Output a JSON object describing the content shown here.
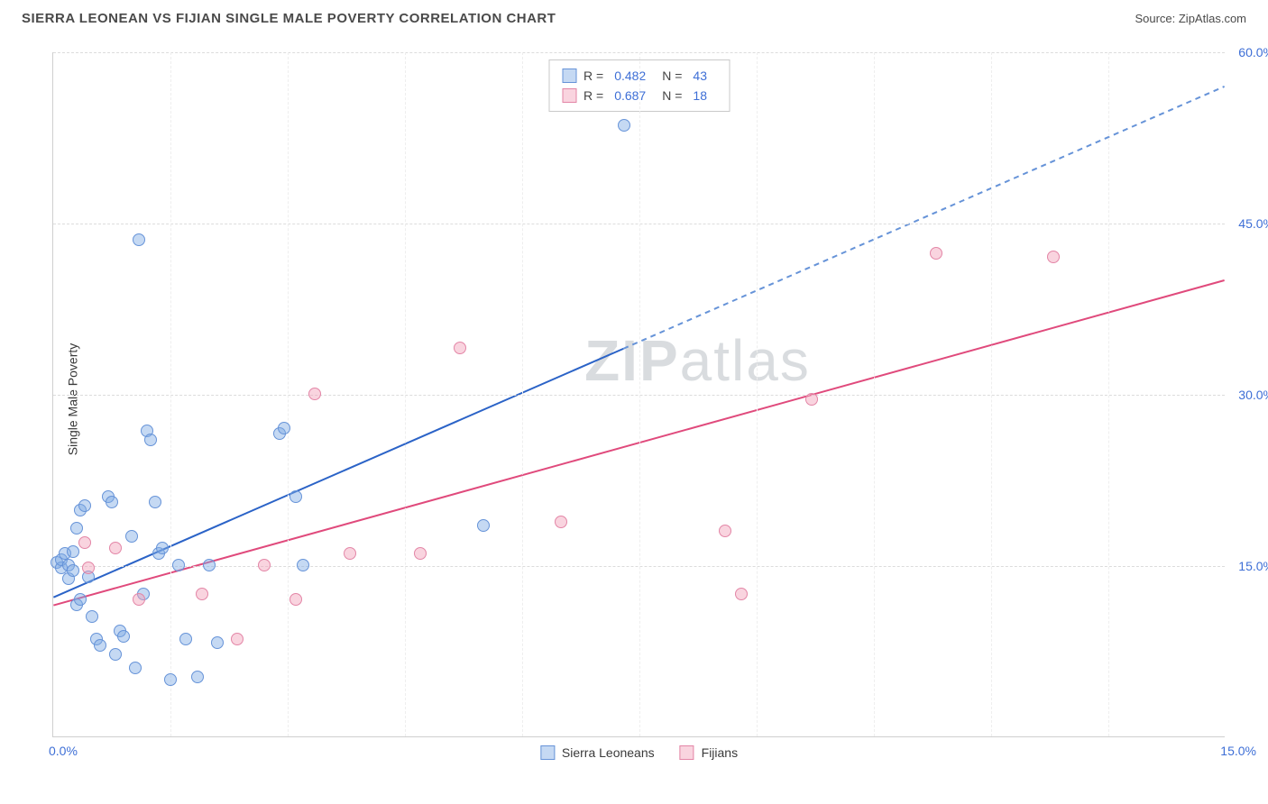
{
  "header": {
    "title": "SIERRA LEONEAN VS FIJIAN SINGLE MALE POVERTY CORRELATION CHART",
    "source": "Source: ZipAtlas.com"
  },
  "ylabel": "Single Male Poverty",
  "watermark": {
    "prefix": "ZIP",
    "suffix": "atlas"
  },
  "chart": {
    "type": "scatter",
    "xlim": [
      0,
      15
    ],
    "ylim": [
      0,
      60
    ],
    "ytick_step": 15,
    "x_left_label": "0.0%",
    "x_right_label": "15.0%",
    "y_labels": [
      "15.0%",
      "30.0%",
      "45.0%",
      "60.0%"
    ],
    "y_label_values": [
      15,
      30,
      45,
      60
    ],
    "vgrid_step": 1.5,
    "background_color": "#ffffff",
    "grid_color_h": "#dcdcdc",
    "grid_color_v": "#eeeeee",
    "axis_color": "#cfcfcf",
    "marker_radius": 7,
    "marker_stroke_width": 1.5,
    "line_width": 2
  },
  "series": [
    {
      "name": "Sierra Leoneans",
      "fill_color": "rgba(127,170,228,0.45)",
      "stroke_color": "#6693d8",
      "line_color": "#2b63c7",
      "dash_color": "#6693d8",
      "R": "0.482",
      "N": "43",
      "trend": {
        "y_at_x0": 12.2,
        "solid_end_x": 7.3,
        "y_at_xmax": 57.0
      },
      "points": [
        [
          0.05,
          15.2
        ],
        [
          0.1,
          14.8
        ],
        [
          0.1,
          15.5
        ],
        [
          0.15,
          16.0
        ],
        [
          0.2,
          15.0
        ],
        [
          0.2,
          13.8
        ],
        [
          0.25,
          14.5
        ],
        [
          0.25,
          16.2
        ],
        [
          0.3,
          18.2
        ],
        [
          0.3,
          11.5
        ],
        [
          0.35,
          12.0
        ],
        [
          0.35,
          19.8
        ],
        [
          0.4,
          20.2
        ],
        [
          0.45,
          14.0
        ],
        [
          0.5,
          10.5
        ],
        [
          0.55,
          8.5
        ],
        [
          0.6,
          8.0
        ],
        [
          0.7,
          21.0
        ],
        [
          0.75,
          20.5
        ],
        [
          0.8,
          7.2
        ],
        [
          0.85,
          9.2
        ],
        [
          0.9,
          8.8
        ],
        [
          1.0,
          17.5
        ],
        [
          1.05,
          6.0
        ],
        [
          1.1,
          43.5
        ],
        [
          1.15,
          12.5
        ],
        [
          1.2,
          26.8
        ],
        [
          1.25,
          26.0
        ],
        [
          1.3,
          20.5
        ],
        [
          1.35,
          16.0
        ],
        [
          1.4,
          16.5
        ],
        [
          1.5,
          5.0
        ],
        [
          1.6,
          15.0
        ],
        [
          1.7,
          8.5
        ],
        [
          1.85,
          5.2
        ],
        [
          2.0,
          15.0
        ],
        [
          2.1,
          8.2
        ],
        [
          2.9,
          26.5
        ],
        [
          2.95,
          27.0
        ],
        [
          3.1,
          21.0
        ],
        [
          3.2,
          15.0
        ],
        [
          5.5,
          18.5
        ],
        [
          7.3,
          53.5
        ]
      ]
    },
    {
      "name": "Fijians",
      "fill_color": "rgba(241,160,185,0.45)",
      "stroke_color": "#e385a6",
      "line_color": "#e04a7c",
      "R": "0.687",
      "N": "18",
      "trend": {
        "y_at_x0": 11.5,
        "solid_end_x": 15.0,
        "y_at_xmax": 40.0
      },
      "points": [
        [
          0.4,
          17.0
        ],
        [
          0.45,
          14.8
        ],
        [
          0.8,
          16.5
        ],
        [
          1.1,
          12.0
        ],
        [
          1.9,
          12.5
        ],
        [
          2.35,
          8.5
        ],
        [
          2.7,
          15.0
        ],
        [
          3.1,
          12.0
        ],
        [
          3.35,
          30.0
        ],
        [
          3.8,
          16.0
        ],
        [
          4.7,
          16.0
        ],
        [
          5.2,
          34.0
        ],
        [
          6.5,
          18.8
        ],
        [
          8.6,
          18.0
        ],
        [
          8.8,
          12.5
        ],
        [
          9.7,
          29.5
        ],
        [
          11.3,
          42.3
        ],
        [
          12.8,
          42.0
        ]
      ]
    }
  ],
  "legend": {
    "items": [
      {
        "label": "Sierra Leoneans"
      },
      {
        "label": "Fijians"
      }
    ]
  }
}
